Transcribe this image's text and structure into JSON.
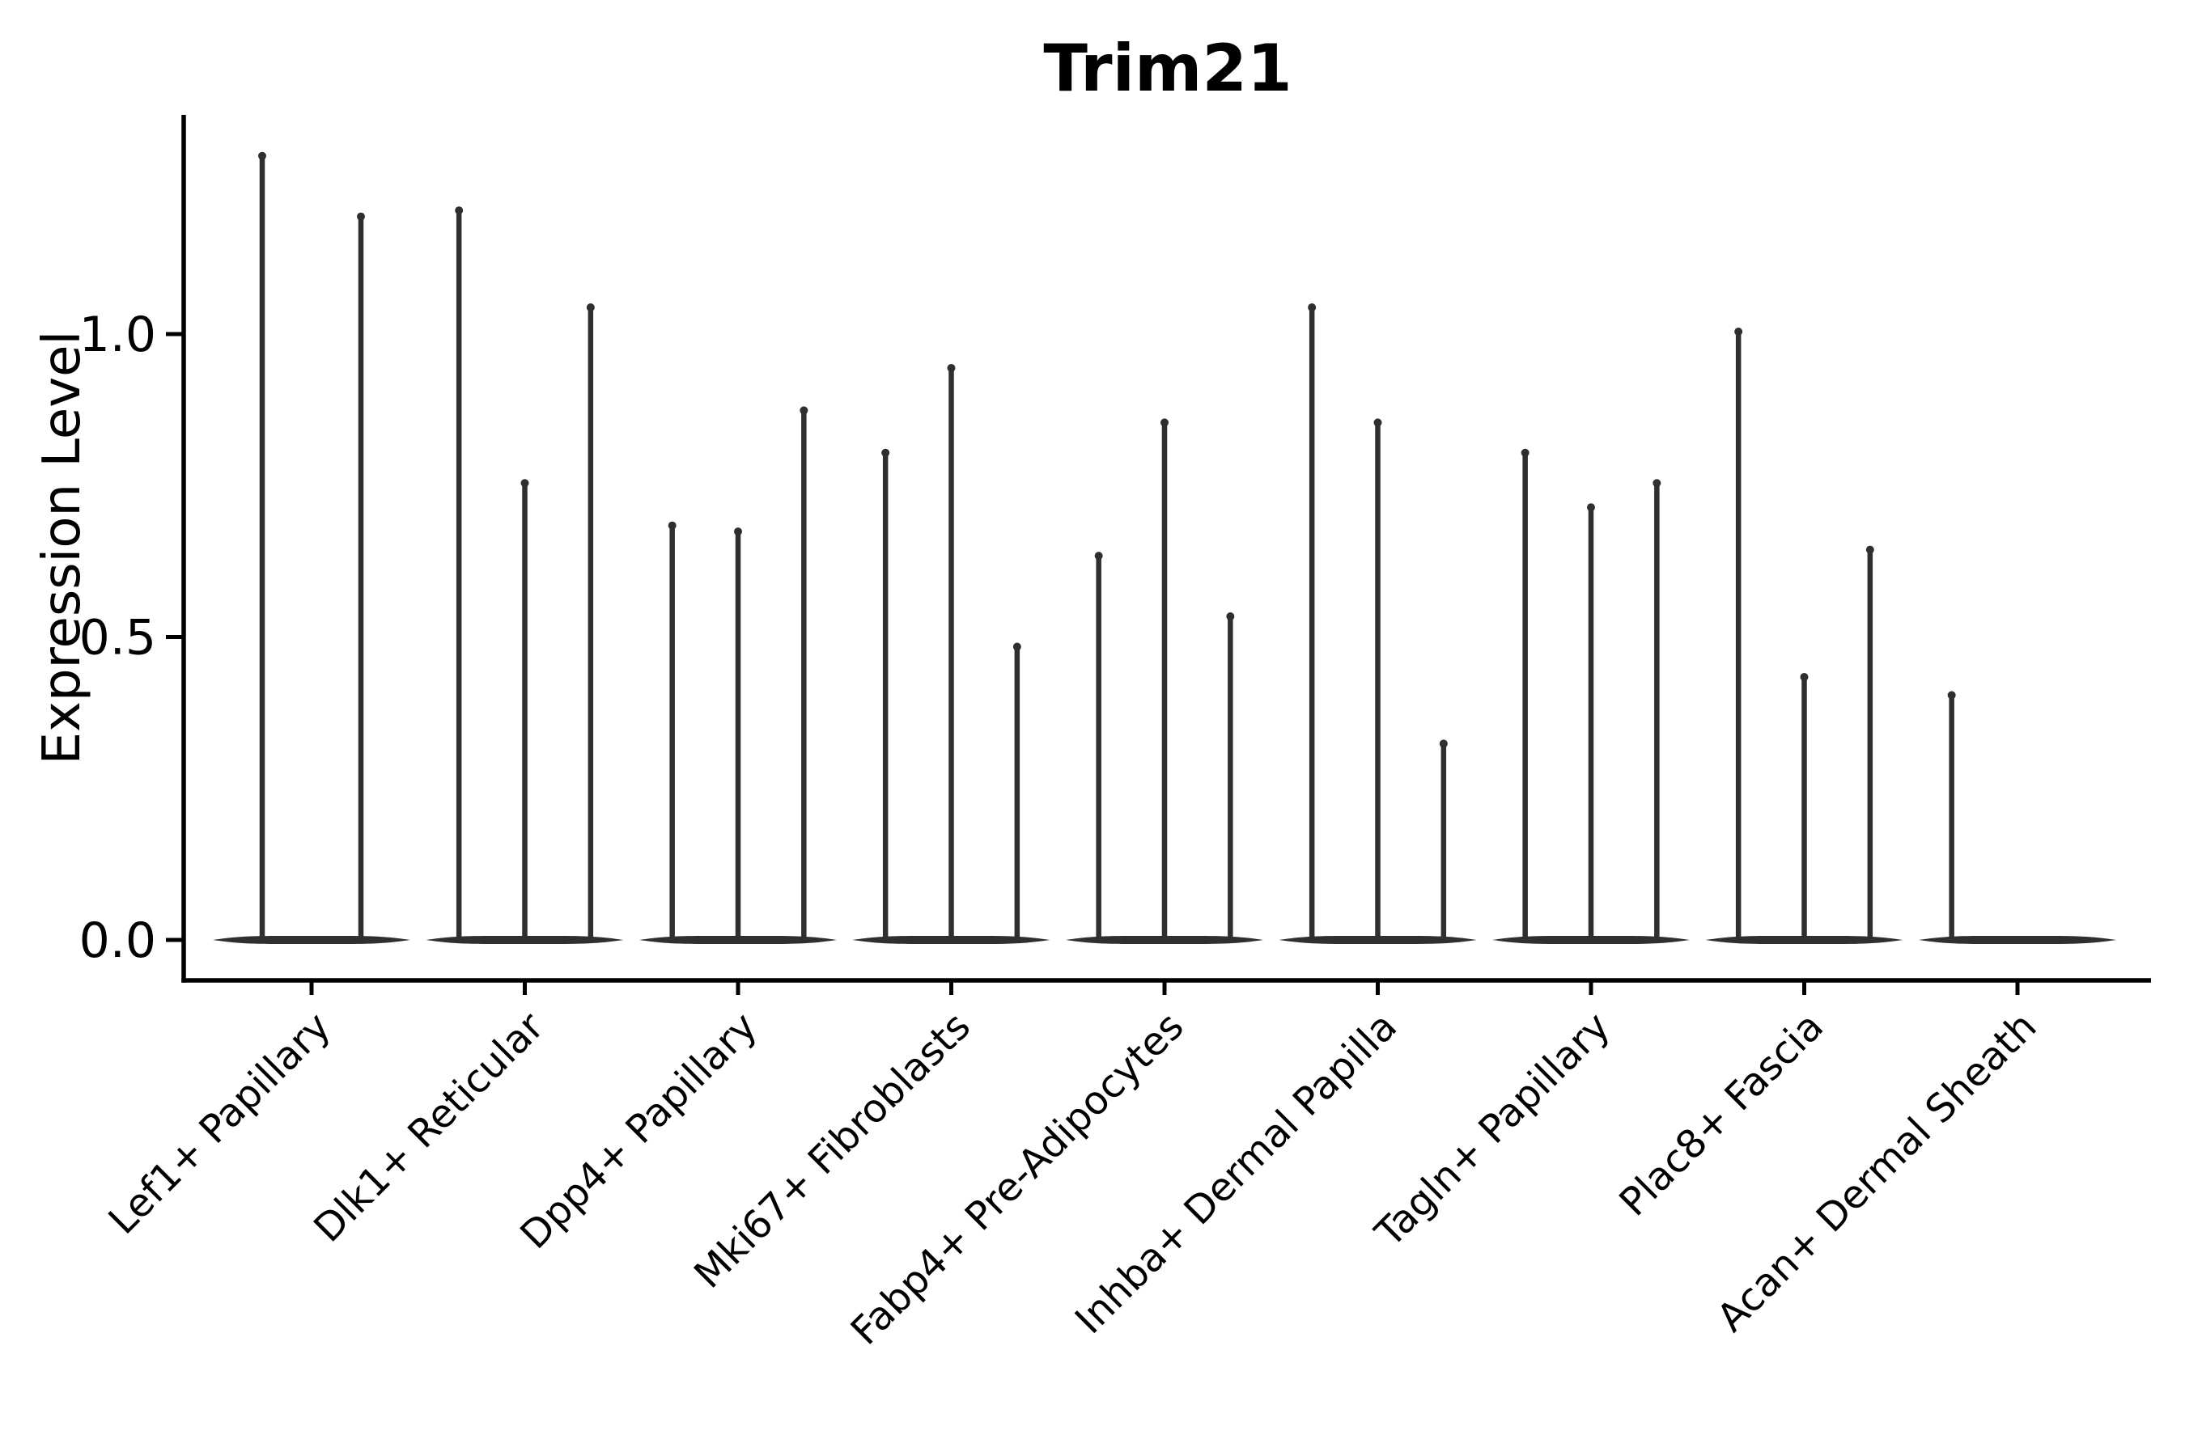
{
  "title": "Trim21",
  "y_axis": {
    "label": "Expression Level",
    "ticks": [
      {
        "value": 0.0,
        "label": "0.0"
      },
      {
        "value": 0.5,
        "label": "0.5"
      },
      {
        "value": 1.0,
        "label": "1.0"
      }
    ]
  },
  "chart_data": {
    "type": "violin",
    "title": "Trim21",
    "xlabel": "",
    "ylabel": "Expression Level",
    "ylim": [
      -0.07,
      1.36
    ],
    "yticks": [
      0.0,
      0.5,
      1.0
    ],
    "grid": false,
    "legend": false,
    "orientation": "vertical",
    "shape_note": "Each violin is a near-zero-width vertical spike from 0 up to its maximum with a wide flat base at 0 (most cells have zero expression); bases of violins within a group merge into one flat band.",
    "categories": [
      "Lef1+ Papillary",
      "Dlk1+ Reticular",
      "Dpp4+ Papillary",
      "Mki67+ Fibroblasts",
      "Fabp4+ Pre-Adipocytes",
      "Inhba+ Dermal Papilla",
      "Tagln+ Papillary",
      "Plac8+ Fascia",
      "Acan+ Dermal Sheath"
    ],
    "groups": [
      {
        "category": "Lef1+ Papillary",
        "spike_maxima": [
          1.3,
          1.2
        ]
      },
      {
        "category": "Dlk1+ Reticular",
        "spike_maxima": [
          1.21,
          0.76,
          1.05
        ]
      },
      {
        "category": "Dpp4+ Papillary",
        "spike_maxima": [
          0.69,
          0.68,
          0.88
        ]
      },
      {
        "category": "Mki67+ Fibroblasts",
        "spike_maxima": [
          0.81,
          0.95,
          0.49
        ]
      },
      {
        "category": "Fabp4+ Pre-Adipocytes",
        "spike_maxima": [
          0.64,
          0.86,
          0.54
        ]
      },
      {
        "category": "Inhba+ Dermal Papilla",
        "spike_maxima": [
          1.05,
          0.86,
          0.33
        ]
      },
      {
        "category": "Tagln+ Papillary",
        "spike_maxima": [
          0.81,
          0.72,
          0.76
        ]
      },
      {
        "category": "Plac8+ Fascia",
        "spike_maxima": [
          1.01,
          0.44,
          0.65
        ]
      },
      {
        "category": "Acan+ Dermal Sheath",
        "spike_maxima": [
          0.41,
          0.0,
          0.0
        ]
      }
    ],
    "colors": {
      "violin": "#2f2f2f",
      "axis": "#000000",
      "text": "#000000",
      "background": "#ffffff"
    }
  }
}
